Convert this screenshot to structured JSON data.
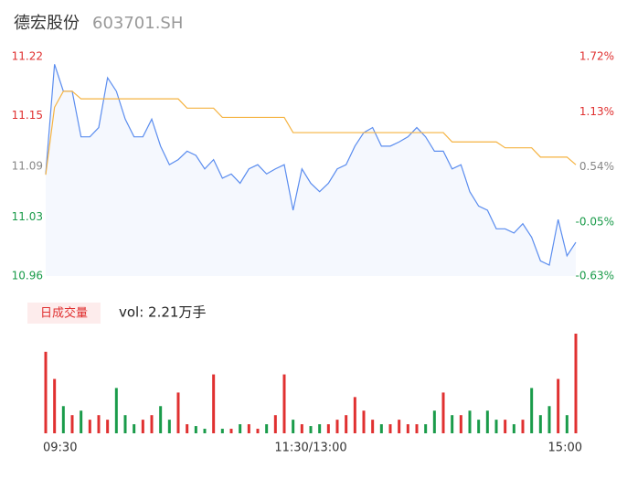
{
  "chart_data": {
    "type": "intraday",
    "title": "德宏股份",
    "subtitle": "603701.SH",
    "categories": [
      "09:30",
      null,
      null,
      null,
      null,
      null,
      null,
      null,
      null,
      null,
      null,
      null,
      null,
      null,
      null,
      null,
      null,
      null,
      null,
      null,
      null,
      null,
      null,
      null,
      null,
      null,
      null,
      null,
      null,
      null,
      "11:30/13:00",
      null,
      null,
      null,
      null,
      null,
      null,
      null,
      null,
      null,
      null,
      null,
      null,
      null,
      null,
      null,
      null,
      null,
      null,
      null,
      null,
      null,
      null,
      null,
      null,
      null,
      null,
      null,
      null,
      null,
      "15:00"
    ],
    "series": [
      {
        "name": "price",
        "color": "#5b8def",
        "values": [
          11.081,
          11.211,
          11.179,
          11.179,
          11.125,
          11.125,
          11.136,
          11.195,
          11.179,
          11.146,
          11.125,
          11.125,
          11.146,
          11.114,
          11.092,
          11.098,
          11.108,
          11.103,
          11.087,
          11.098,
          11.076,
          11.081,
          11.07,
          11.087,
          11.092,
          11.081,
          11.087,
          11.092,
          11.038,
          11.087,
          11.07,
          11.06,
          11.07,
          11.087,
          11.092,
          11.114,
          11.13,
          11.136,
          11.114,
          11.114,
          11.119,
          11.125,
          11.136,
          11.125,
          11.108,
          11.108,
          11.087,
          11.092,
          11.06,
          11.043,
          11.038,
          11.016,
          11.016,
          11.011,
          11.022,
          11.006,
          10.978,
          10.973,
          11.027,
          10.984,
          11.0
        ]
      },
      {
        "name": "average",
        "color": "#f5b342",
        "values": [
          11.08,
          11.16,
          11.179,
          11.179,
          11.17,
          11.17,
          11.17,
          11.17,
          11.17,
          11.17,
          11.17,
          11.17,
          11.17,
          11.17,
          11.17,
          11.17,
          11.159,
          11.159,
          11.159,
          11.159,
          11.148,
          11.148,
          11.148,
          11.148,
          11.148,
          11.148,
          11.148,
          11.148,
          11.13,
          11.13,
          11.13,
          11.13,
          11.13,
          11.13,
          11.13,
          11.13,
          11.13,
          11.13,
          11.13,
          11.13,
          11.13,
          11.13,
          11.13,
          11.13,
          11.13,
          11.13,
          11.119,
          11.119,
          11.119,
          11.119,
          11.119,
          11.119,
          11.112,
          11.112,
          11.112,
          11.112,
          11.101,
          11.101,
          11.101,
          11.101,
          11.092
        ]
      }
    ],
    "ylim": [
      10.96,
      11.22
    ],
    "yticks": [
      11.22,
      11.15,
      11.09,
      11.03,
      10.96
    ],
    "ytick_colors": [
      "#e03030",
      "#e03030",
      "#888888",
      "#1a9b4a",
      "#1a9b4a"
    ],
    "y2lim": [
      -0.63,
      1.72
    ],
    "y2ticks": [
      {
        "value": 1.72,
        "label": "1.72%"
      },
      {
        "value": 1.13,
        "label": "1.13%"
      },
      {
        "value": 0.54,
        "label": "0.54%"
      },
      {
        "value": -0.05,
        "label": "-0.05%"
      },
      {
        "value": -0.63,
        "label": "-0.63%"
      }
    ],
    "volume_tag": "日成交量",
    "volume_text": "vol: 2.21万手",
    "volume": [
      90,
      60,
      30,
      20,
      25,
      15,
      20,
      15,
      50,
      20,
      10,
      15,
      20,
      30,
      15,
      45,
      10,
      8,
      5,
      65,
      5,
      5,
      10,
      10,
      5,
      10,
      20,
      65,
      15,
      10,
      8,
      10,
      10,
      15,
      20,
      40,
      25,
      15,
      10,
      10,
      15,
      10,
      10,
      10,
      25,
      45,
      20,
      20,
      25,
      15,
      25,
      15,
      15,
      10,
      15,
      50,
      20,
      30,
      60,
      20,
      110
    ],
    "volume_lim": [
      0,
      110
    ],
    "up_color": "#e03030",
    "down_color": "#1a9b4a"
  }
}
